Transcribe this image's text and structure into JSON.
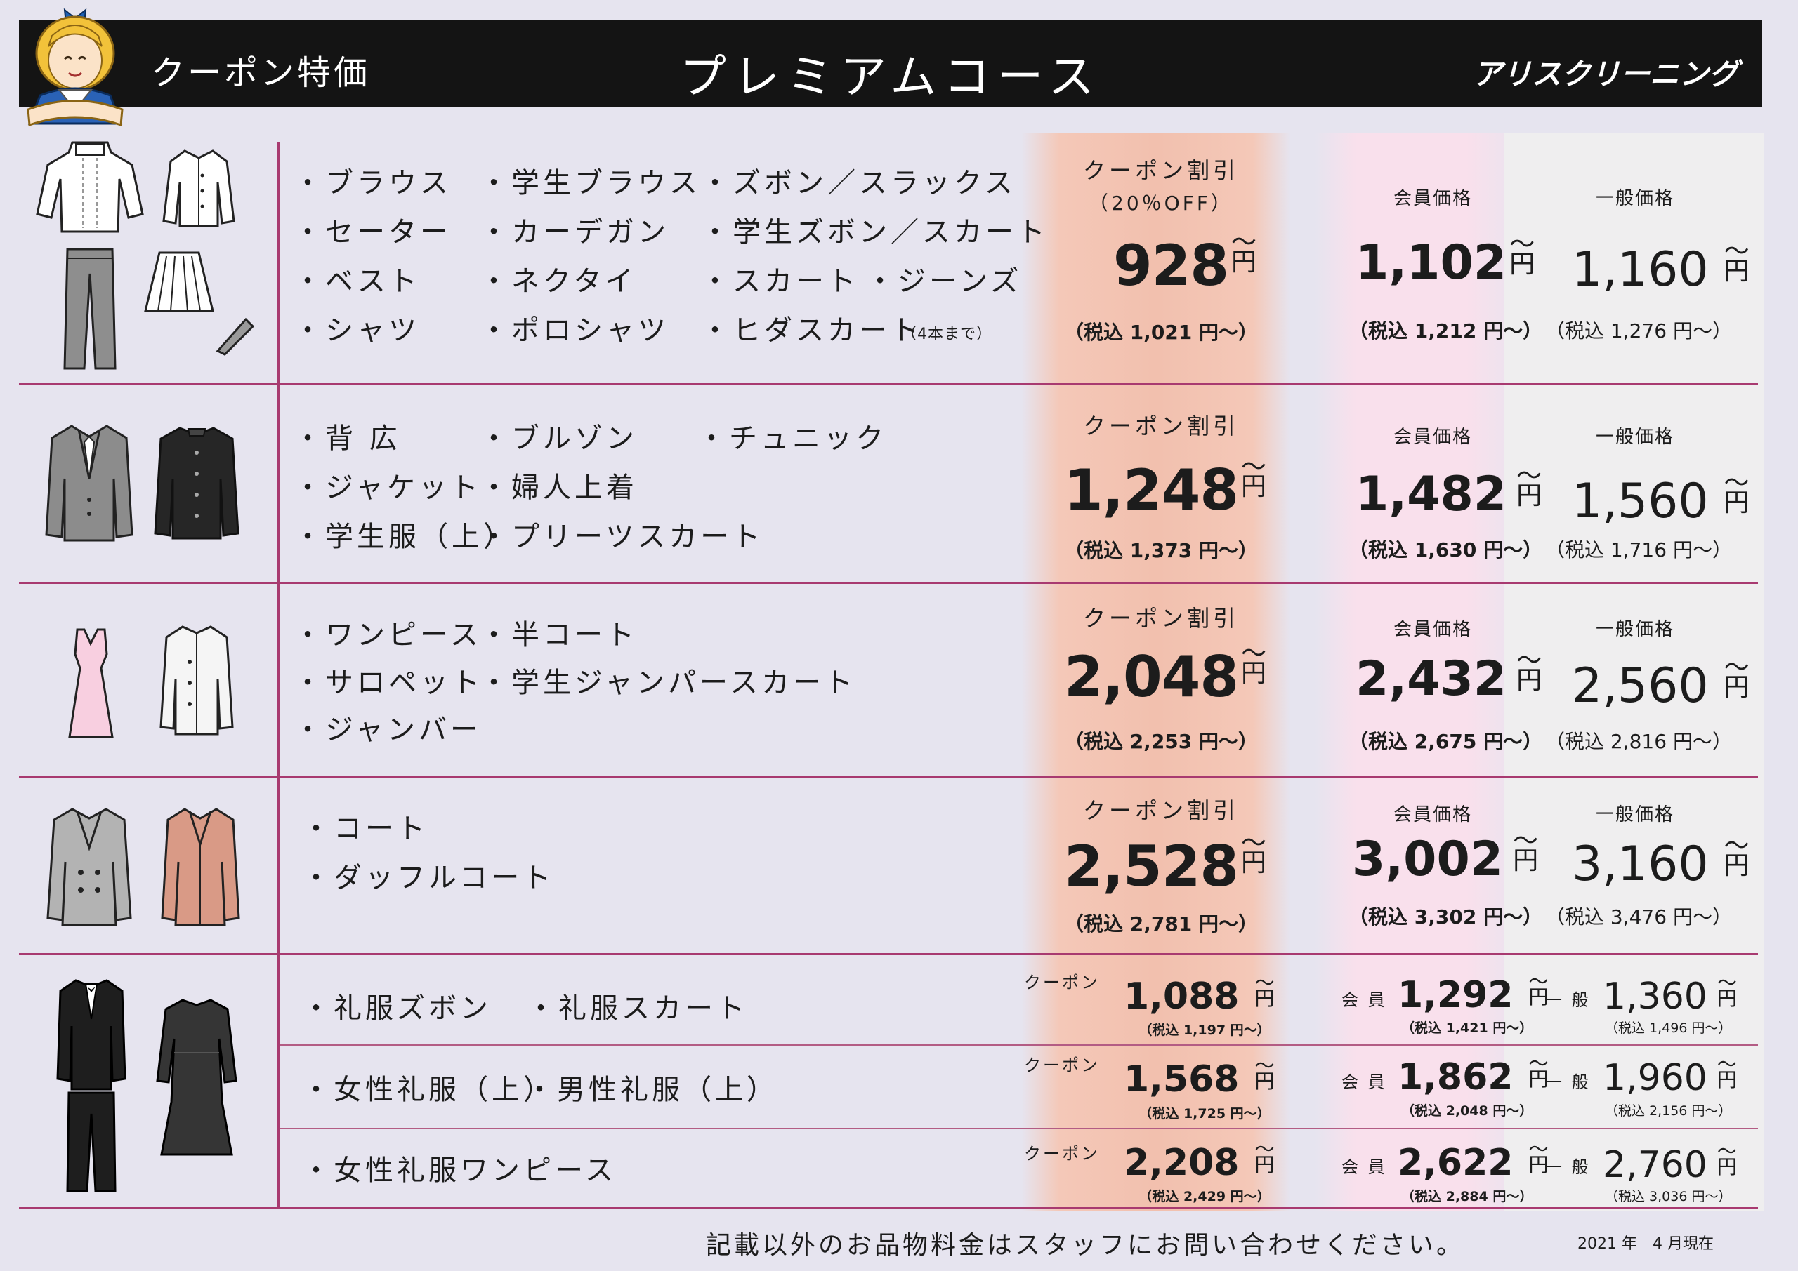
{
  "header": {
    "left_label": "クーポン特価",
    "title": "プレミアムコース",
    "brand": "アリスクリーニング"
  },
  "rows": [
    {
      "items": [
        "・ブラウス",
        "・学生ブラウス",
        "・ズボン／スラックス",
        "・セーター",
        "・カーデガン",
        "・学生ズボン／スカート",
        "・ベスト",
        "・ネクタイ",
        "・スカート",
        "・ジーンズ",
        "・シャツ",
        "・ポロシャツ",
        "・ヒダスカート"
      ],
      "note": "（4本まで）",
      "coupon_label": "クーポン割引",
      "coupon_sub": "（20％OFF）",
      "coupon_price": "928",
      "coupon_tax": "（税込 1,021 円～）",
      "member_label": "会員価格",
      "member_price": "1,102",
      "member_tax": "（税込 1,212 円～）",
      "general_label": "一般価格",
      "general_price": "1,160",
      "general_tax": "（税込 1,276 円～）"
    },
    {
      "items": [
        "・背 広",
        "・ブルゾン",
        "・チュニック",
        "・ジャケット",
        "・婦人上着",
        "・学生服（上）",
        "・プリーツスカート"
      ],
      "coupon_label": "クーポン割引",
      "coupon_price": "1,248",
      "coupon_tax": "（税込 1,373 円～）",
      "member_label": "会員価格",
      "member_price": "1,482",
      "member_tax": "（税込 1,630 円～）",
      "general_label": "一般価格",
      "general_price": "1,560",
      "general_tax": "（税込 1,716 円～）"
    },
    {
      "items": [
        "・ワンピース",
        "・半コート",
        "・サロペット",
        "・学生ジャンパースカート",
        "・ジャンバー"
      ],
      "coupon_label": "クーポン割引",
      "coupon_price": "2,048",
      "coupon_tax": "（税込 2,253 円～）",
      "member_label": "会員価格",
      "member_price": "2,432",
      "member_tax": "（税込 2,675 円～）",
      "general_label": "一般価格",
      "general_price": "2,560",
      "general_tax": "（税込 2,816 円～）"
    },
    {
      "items": [
        "・コート",
        "・ダッフルコート"
      ],
      "coupon_label": "クーポン割引",
      "coupon_price": "2,528",
      "coupon_tax": "（税込 2,781 円～）",
      "member_label": "会員価格",
      "member_price": "3,002",
      "member_tax": "（税込 3,302 円～）",
      "general_label": "一般価格",
      "general_price": "3,160",
      "general_tax": "（税込 3,476 円～）"
    }
  ],
  "formal": [
    {
      "items": [
        "・礼服ズボン",
        "・礼服スカート"
      ],
      "coupon_label": "クーポン",
      "coupon_price": "1,088",
      "coupon_tax": "（税込 1,197 円～）",
      "member_label": "会 員",
      "member_price": "1,292",
      "member_tax": "（税込 1,421 円～）",
      "general_label": "一 般",
      "general_price": "1,360",
      "general_tax": "（税込 1,496 円～）"
    },
    {
      "items": [
        "・女性礼服（上）",
        "・男性礼服（上）"
      ],
      "coupon_label": "クーポン",
      "coupon_price": "1,568",
      "coupon_tax": "（税込 1,725 円～）",
      "member_label": "会 員",
      "member_price": "1,862",
      "member_tax": "（税込 2,048 円～）",
      "general_label": "一 般",
      "general_price": "1,960",
      "general_tax": "（税込 2,156 円～）"
    },
    {
      "items": [
        "・女性礼服ワンピース"
      ],
      "coupon_label": "クーポン",
      "coupon_price": "2,208",
      "coupon_tax": "（税込 2,429 円～）",
      "member_label": "会 員",
      "member_price": "2,622",
      "member_tax": "（税込 2,884 円～）",
      "general_label": "一 般",
      "general_price": "2,760",
      "general_tax": "（税込 3,036 円～）"
    }
  ],
  "units": {
    "tilde": "～",
    "yen": "円"
  },
  "footer": {
    "note": "記載以外のお品物料金はスタッフにお問い合わせください。",
    "date": "2021 年　4 月現在"
  },
  "colors": {
    "background": "#e6e4ef",
    "header": "#141414",
    "divider": "#a83a70",
    "coupon_column": "#f2c0ae",
    "member_column": "#f9e0ec",
    "general_column": "#efeeef"
  },
  "icons": [
    "mascot-icon",
    "sweater-icon",
    "blouse-icon",
    "trousers-icon",
    "pleated-skirt-icon",
    "necktie-icon",
    "suit-jacket-icon",
    "school-uniform-icon",
    "dress-icon",
    "short-coat-icon",
    "gray-coat-icon",
    "pink-coat-icon",
    "tuxedo-icon",
    "black-dress-icon"
  ]
}
